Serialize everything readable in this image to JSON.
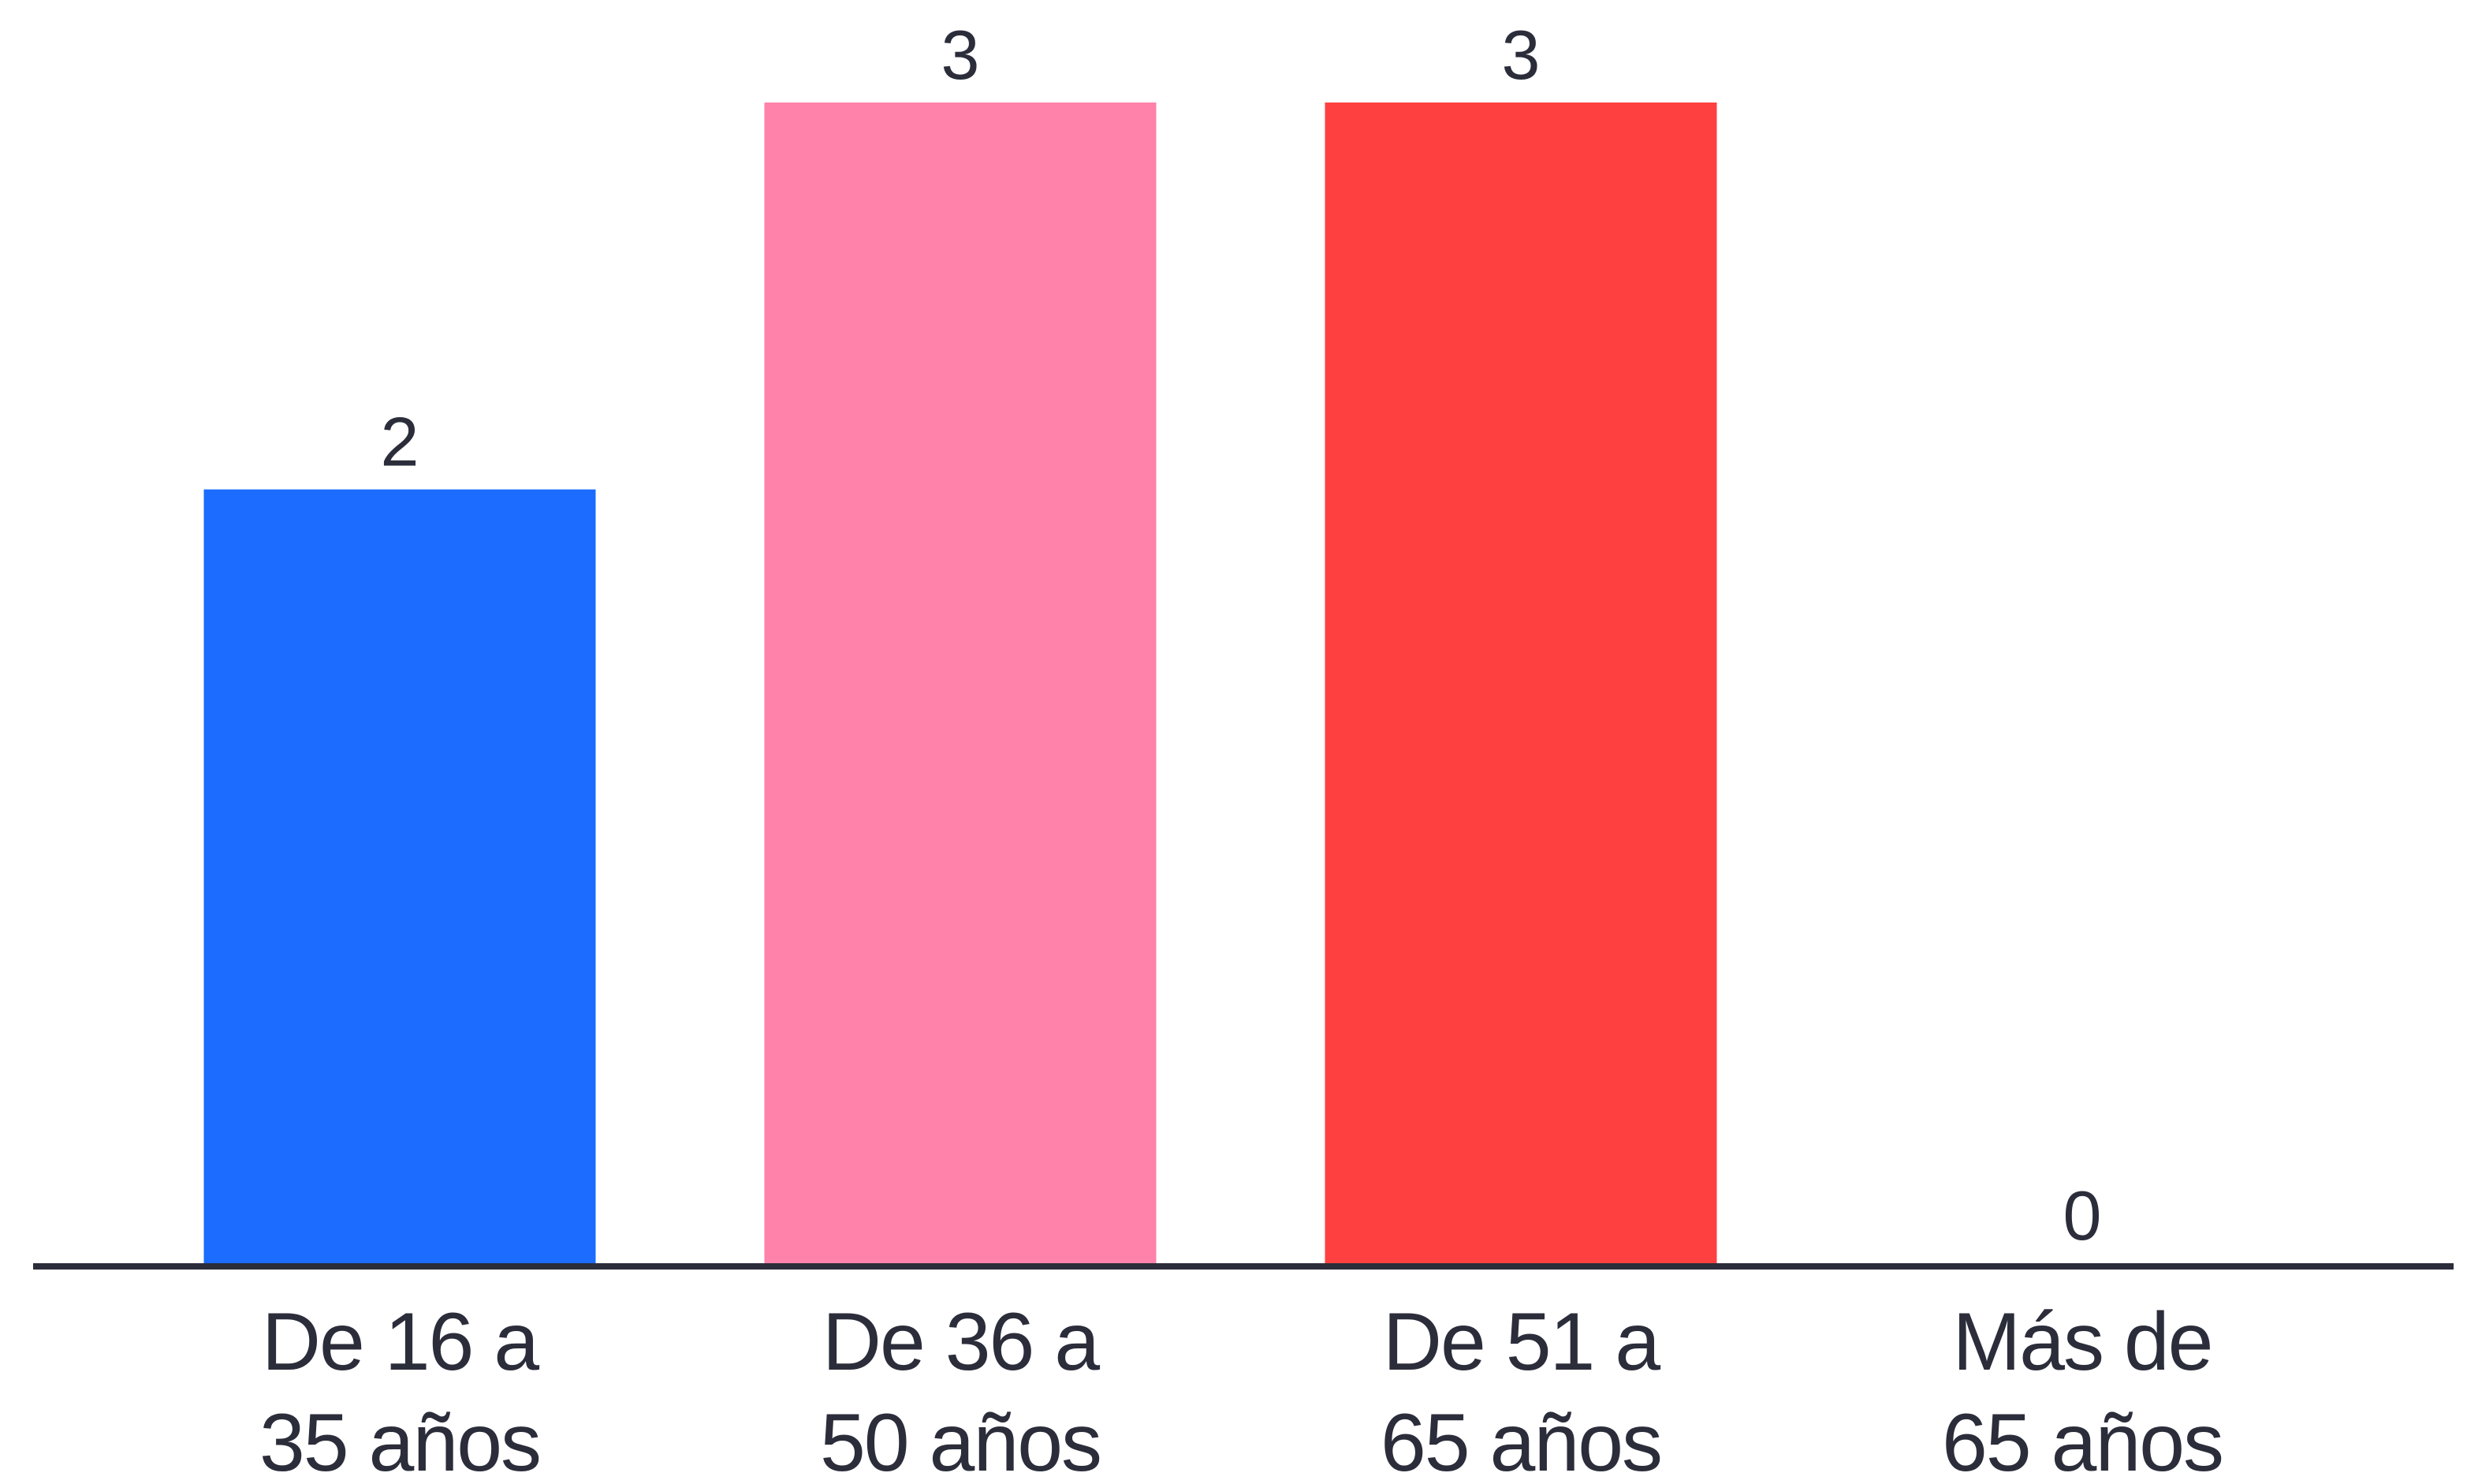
{
  "chart_data": {
    "type": "bar",
    "categories": [
      [
        "De 16 a",
        "35 años"
      ],
      [
        "De 36 a",
        "50 años"
      ],
      [
        "De 51 a",
        "65 años"
      ],
      [
        "Más de",
        "65 años"
      ]
    ],
    "values": [
      2,
      3,
      3,
      0
    ],
    "value_labels": [
      "2",
      "3",
      "3",
      "0"
    ],
    "colors": [
      "#1b6cff",
      "#ff82aa",
      "#ff4040",
      "#ffffff"
    ],
    "axis_color": "#2b2d3a",
    "ylim": [
      0,
      3
    ],
    "grid": false,
    "legend": "none"
  }
}
